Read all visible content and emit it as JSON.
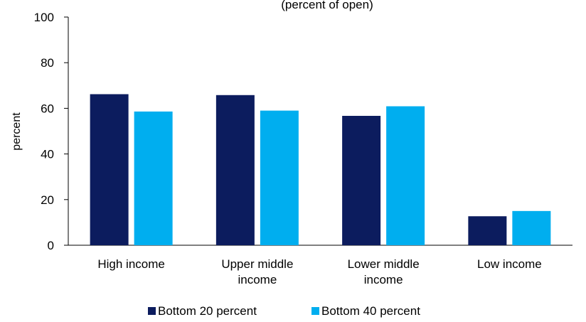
{
  "chart_data": {
    "type": "bar",
    "title": "(percent of open)",
    "ylabel": "percent",
    "xlabel": "",
    "ylim": [
      0,
      100
    ],
    "yticks": [
      0,
      20,
      40,
      60,
      80,
      100
    ],
    "grid": false,
    "legend_position": "bottom",
    "categories": [
      [
        "High income"
      ],
      [
        "Upper middle",
        "income"
      ],
      [
        "Lower middle",
        "income"
      ],
      [
        "Low income"
      ]
    ],
    "series": [
      {
        "name": "Bottom 20 percent",
        "color": "#0c1c5e",
        "values": [
          66.2,
          65.8,
          56.7,
          12.7
        ]
      },
      {
        "name": "Bottom 40 percent",
        "color": "#00aeef",
        "values": [
          58.6,
          59.0,
          60.9,
          15.0
        ]
      }
    ]
  }
}
